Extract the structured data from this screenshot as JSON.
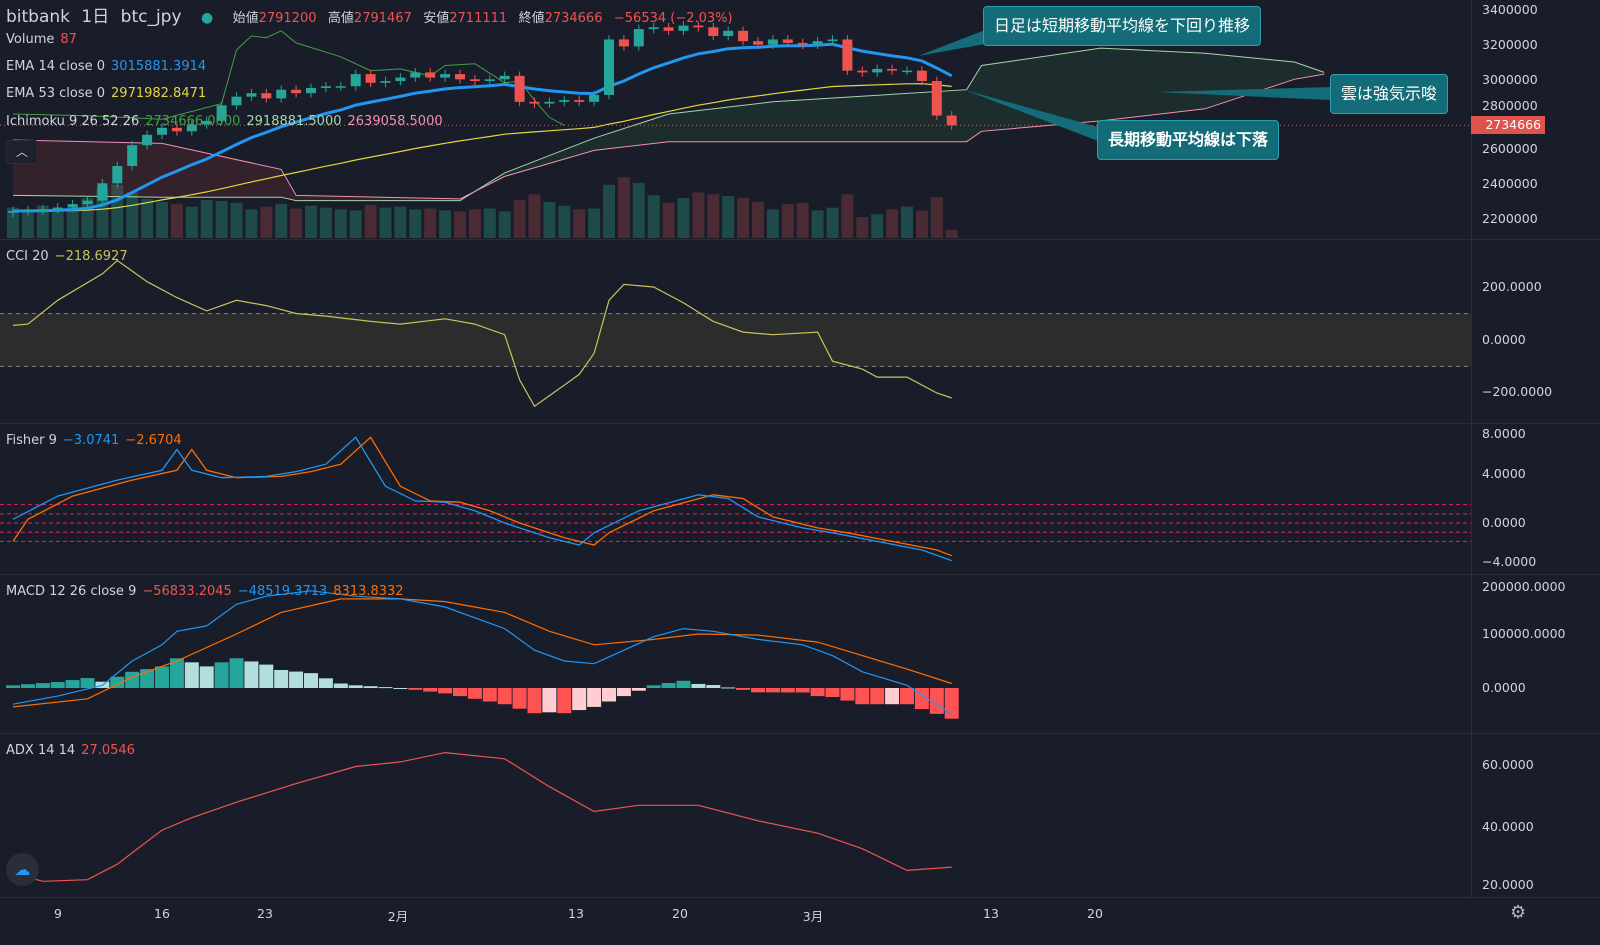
{
  "header": {
    "exchange": "bitbank",
    "interval": "1日",
    "symbol": "btc_jpy",
    "open_label": "始値",
    "open": "2791200",
    "high_label": "高値",
    "high": "2791467",
    "low_label": "安値",
    "low": "2711111",
    "close_label": "終値",
    "close": "2734666",
    "change": "−56534 (−2.03%)"
  },
  "legends": {
    "volume": {
      "label": "Volume",
      "value": "87"
    },
    "ema14": {
      "label": "EMA 14 close 0",
      "value": "3015881.3914"
    },
    "ema53": {
      "label": "EMA 53 close 0",
      "value": "2971982.8471"
    },
    "ichimoku": {
      "label": "Ichimoku 9 26 52 26",
      "v1": "2734666.0000",
      "v2": "2918881.5000",
      "v3": "2639058.5000"
    },
    "cci": {
      "label": "CCI 20",
      "value": "−218.6927"
    },
    "fisher": {
      "label": "Fisher 9",
      "v1": "−3.0741",
      "v2": "−2.6704"
    },
    "macd": {
      "label": "MACD 12 26 close 9",
      "hist": "−56833.2045",
      "macd": "−48519.3713",
      "signal": "8313.8332"
    },
    "adx": {
      "label": "ADX 14 14",
      "value": "27.0546"
    }
  },
  "price_axis": {
    "ticks": [
      "3400000",
      "3200000",
      "3000000",
      "2800000",
      "2600000",
      "2400000",
      "2200000"
    ],
    "current_price": "2734666"
  },
  "cci_axis": [
    "200.0000",
    "0.0000",
    "−200.0000"
  ],
  "fisher_axis": [
    "8.0000",
    "4.0000",
    "0.0000",
    "−4.0000"
  ],
  "macd_axis": [
    "200000.0000",
    "100000.0000",
    "0.0000"
  ],
  "adx_axis": [
    "60.0000",
    "40.0000",
    "20.0000"
  ],
  "time_axis": [
    "9",
    "16",
    "23",
    "2月",
    "13",
    "20",
    "3月",
    "13",
    "20"
  ],
  "annotations": {
    "short_ma": "日足は短期移動平均線を下回り推移",
    "cloud": "雲は強気示唆",
    "long_ma": "長期移動平均線は下落"
  },
  "colors": {
    "up": "#26a69a",
    "down": "#ef5350",
    "ema14": "#2196f3",
    "ema53": "#e5d63a",
    "lagging": "#43a047",
    "spanA": "#a5d6a7",
    "spanB": "#f48fb1",
    "cci": "#c9c35a",
    "fisher": "#2196f3",
    "trigger": "#ff6d00",
    "adx": "#ef5350"
  },
  "chart_data": {
    "type": "candlestick",
    "x_unit": "day index (0 = 1月6日)",
    "time_ticks": [
      {
        "day": 3,
        "label": "9"
      },
      {
        "day": 10,
        "label": "16"
      },
      {
        "day": 17,
        "label": "23"
      },
      {
        "day": 26,
        "label": "2月"
      },
      {
        "day": 38,
        "label": "13"
      },
      {
        "day": 45,
        "label": "20"
      },
      {
        "day": 54,
        "label": "3月"
      },
      {
        "day": 66,
        "label": "13"
      },
      {
        "day": 73,
        "label": "20"
      }
    ],
    "price_range": [
      2200000,
      3400000
    ],
    "closes": [
      2240000,
      2245000,
      2250000,
      2260000,
      2280000,
      2300000,
      2400000,
      2500000,
      2620000,
      2680000,
      2720000,
      2700000,
      2740000,
      2760000,
      2850000,
      2900000,
      2920000,
      2890000,
      2940000,
      2920000,
      2950000,
      2960000,
      2960000,
      3030000,
      2980000,
      2990000,
      3010000,
      3040000,
      3010000,
      3030000,
      3000000,
      2990000,
      3000000,
      3020000,
      2870000,
      2860000,
      2870000,
      2880000,
      2870000,
      2910000,
      3230000,
      3190000,
      3290000,
      3300000,
      3280000,
      3310000,
      3300000,
      3250000,
      3280000,
      3220000,
      3200000,
      3230000,
      3210000,
      3200000,
      3220000,
      3230000,
      3050000,
      3040000,
      3060000,
      3050000,
      3050000,
      2990000,
      2791200,
      2734666
    ],
    "volumes": [
      320,
      300,
      340,
      280,
      310,
      420,
      520,
      560,
      480,
      410,
      380,
      360,
      330,
      400,
      390,
      370,
      300,
      330,
      360,
      310,
      340,
      320,
      300,
      290,
      350,
      320,
      330,
      300,
      310,
      290,
      280,
      300,
      310,
      280,
      400,
      460,
      380,
      340,
      300,
      310,
      560,
      640,
      580,
      450,
      370,
      420,
      480,
      460,
      440,
      420,
      380,
      300,
      360,
      370,
      290,
      320,
      460,
      220,
      250,
      300,
      330,
      290,
      430,
      87
    ],
    "ema_periods": [
      14,
      53
    ],
    "ichimoku": {
      "lagging_span": [
        [
          0,
          2800000
        ],
        [
          5,
          2790000
        ],
        [
          10,
          2770000
        ],
        [
          14,
          2860000
        ],
        [
          15,
          3170000
        ],
        [
          16,
          3250000
        ],
        [
          17,
          3240000
        ],
        [
          18,
          3280000
        ],
        [
          19,
          3210000
        ],
        [
          22,
          3130000
        ],
        [
          24,
          3050000
        ],
        [
          26,
          3060000
        ],
        [
          28,
          3020000
        ],
        [
          29,
          3080000
        ],
        [
          31,
          3090000
        ],
        [
          33,
          2980000
        ],
        [
          34,
          2990000
        ],
        [
          35,
          2880000
        ],
        [
          36,
          2780000
        ],
        [
          37,
          2734666
        ]
      ],
      "span_a": [
        [
          0,
          2330000
        ],
        [
          10,
          2320000
        ],
        [
          18,
          2320000
        ],
        [
          19,
          2300000
        ],
        [
          30,
          2300000
        ],
        [
          33,
          2460000
        ],
        [
          39,
          2660000
        ],
        [
          44,
          2800000
        ],
        [
          51,
          2870000
        ],
        [
          64,
          2940000
        ],
        [
          65,
          3080000
        ],
        [
          73,
          3180000
        ],
        [
          80,
          3150000
        ],
        [
          86,
          3100000
        ],
        [
          88,
          3040000
        ]
      ],
      "span_b": [
        [
          0,
          2650000
        ],
        [
          10,
          2630000
        ],
        [
          18,
          2480000
        ],
        [
          19,
          2330000
        ],
        [
          30,
          2310000
        ],
        [
          33,
          2440000
        ],
        [
          39,
          2590000
        ],
        [
          44,
          2640000
        ],
        [
          51,
          2640000
        ],
        [
          64,
          2640000
        ],
        [
          65,
          2700000
        ],
        [
          73,
          2760000
        ],
        [
          80,
          2830000
        ],
        [
          86,
          3000000
        ],
        [
          88,
          3030000
        ]
      ]
    },
    "cci": {
      "range": [
        -300,
        400
      ],
      "bands": [
        100,
        -100
      ],
      "values": [
        [
          0,
          55
        ],
        [
          1,
          60
        ],
        [
          3,
          150
        ],
        [
          6,
          250
        ],
        [
          7,
          300
        ],
        [
          9,
          220
        ],
        [
          11,
          160
        ],
        [
          13,
          110
        ],
        [
          15,
          150
        ],
        [
          17,
          130
        ],
        [
          19,
          100
        ],
        [
          21,
          90
        ],
        [
          24,
          70
        ],
        [
          26,
          60
        ],
        [
          29,
          80
        ],
        [
          31,
          60
        ],
        [
          33,
          20
        ],
        [
          34,
          -150
        ],
        [
          35,
          -250
        ],
        [
          37,
          -170
        ],
        [
          38,
          -130
        ],
        [
          39,
          -50
        ],
        [
          40,
          150
        ],
        [
          41,
          210
        ],
        [
          43,
          200
        ],
        [
          45,
          140
        ],
        [
          47,
          70
        ],
        [
          49,
          30
        ],
        [
          51,
          20
        ],
        [
          54,
          30
        ],
        [
          55,
          -80
        ],
        [
          57,
          -110
        ],
        [
          58,
          -140
        ],
        [
          60,
          -140
        ],
        [
          62,
          -200
        ],
        [
          63,
          -218.69
        ]
      ]
    },
    "fisher": {
      "levels": [
        1.5,
        0.75,
        0,
        -0.75,
        -1.5
      ],
      "fisher": [
        [
          0,
          0.3
        ],
        [
          3,
          2.2
        ],
        [
          7,
          3.5
        ],
        [
          10,
          4.3
        ],
        [
          11,
          6.0
        ],
        [
          12,
          4.3
        ],
        [
          14,
          3.7
        ],
        [
          17,
          3.8
        ],
        [
          19,
          4.2
        ],
        [
          21,
          4.8
        ],
        [
          23,
          7.0
        ],
        [
          24,
          5.0
        ],
        [
          25,
          3.0
        ],
        [
          27,
          1.8
        ],
        [
          29,
          1.7
        ],
        [
          31,
          1.0
        ],
        [
          33,
          0
        ],
        [
          36,
          -1.2
        ],
        [
          38,
          -1.8
        ],
        [
          39,
          -0.8
        ],
        [
          42,
          1.0
        ],
        [
          46,
          2.3
        ],
        [
          48,
          2.0
        ],
        [
          50,
          0.5
        ],
        [
          53,
          -0.4
        ],
        [
          55,
          -0.8
        ],
        [
          58,
          -1.5
        ],
        [
          61,
          -2.2
        ],
        [
          63,
          -3.07
        ]
      ],
      "trigger": [
        [
          0,
          -1.5
        ],
        [
          1,
          0.3
        ],
        [
          4,
          2.2
        ],
        [
          8,
          3.5
        ],
        [
          11,
          4.3
        ],
        [
          12,
          6.0
        ],
        [
          13,
          4.3
        ],
        [
          15,
          3.7
        ],
        [
          18,
          3.8
        ],
        [
          20,
          4.2
        ],
        [
          22,
          4.8
        ],
        [
          24,
          7.0
        ],
        [
          25,
          5.0
        ],
        [
          26,
          3.0
        ],
        [
          28,
          1.8
        ],
        [
          30,
          1.7
        ],
        [
          32,
          1.0
        ],
        [
          34,
          0
        ],
        [
          37,
          -1.2
        ],
        [
          39,
          -1.8
        ],
        [
          40,
          -0.8
        ],
        [
          43,
          1.0
        ],
        [
          47,
          2.3
        ],
        [
          49,
          2.0
        ],
        [
          51,
          0.5
        ],
        [
          54,
          -0.4
        ],
        [
          56,
          -0.8
        ],
        [
          59,
          -1.5
        ],
        [
          62,
          -2.2
        ],
        [
          63,
          -2.67
        ]
      ]
    },
    "macd": {
      "macd": [
        [
          0,
          -30000
        ],
        [
          3,
          -15000
        ],
        [
          6,
          5000
        ],
        [
          8,
          50000
        ],
        [
          10,
          80000
        ],
        [
          11,
          105000
        ],
        [
          13,
          115000
        ],
        [
          15,
          155000
        ],
        [
          17,
          170000
        ],
        [
          20,
          180000
        ],
        [
          23,
          170000
        ],
        [
          26,
          165000
        ],
        [
          29,
          150000
        ],
        [
          33,
          110000
        ],
        [
          35,
          70000
        ],
        [
          37,
          50000
        ],
        [
          39,
          45000
        ],
        [
          41,
          70000
        ],
        [
          43,
          95000
        ],
        [
          45,
          110000
        ],
        [
          47,
          105000
        ],
        [
          50,
          90000
        ],
        [
          53,
          80000
        ],
        [
          55,
          60000
        ],
        [
          57,
          30000
        ],
        [
          60,
          5000
        ],
        [
          63,
          -48519
        ]
      ],
      "signal": [
        [
          0,
          -35000
        ],
        [
          5,
          -20000
        ],
        [
          8,
          20000
        ],
        [
          11,
          50000
        ],
        [
          15,
          100000
        ],
        [
          18,
          140000
        ],
        [
          22,
          165000
        ],
        [
          26,
          165000
        ],
        [
          29,
          160000
        ],
        [
          33,
          140000
        ],
        [
          36,
          105000
        ],
        [
          39,
          80000
        ],
        [
          43,
          90000
        ],
        [
          46,
          100000
        ],
        [
          50,
          98000
        ],
        [
          54,
          85000
        ],
        [
          57,
          60000
        ],
        [
          60,
          35000
        ],
        [
          63,
          8314
        ]
      ]
    },
    "adx": [
      [
        0,
        25
      ],
      [
        2,
        22.5
      ],
      [
        5,
        23
      ],
      [
        7,
        28
      ],
      [
        10,
        39
      ],
      [
        12,
        43
      ],
      [
        15,
        48
      ],
      [
        19,
        54
      ],
      [
        23,
        59.5
      ],
      [
        26,
        61
      ],
      [
        29,
        64
      ],
      [
        33,
        62
      ],
      [
        36,
        53
      ],
      [
        39,
        45
      ],
      [
        42,
        47
      ],
      [
        46,
        47
      ],
      [
        50,
        42
      ],
      [
        54,
        38
      ],
      [
        57,
        33
      ],
      [
        60,
        26
      ],
      [
        63,
        27.05
      ]
    ]
  }
}
